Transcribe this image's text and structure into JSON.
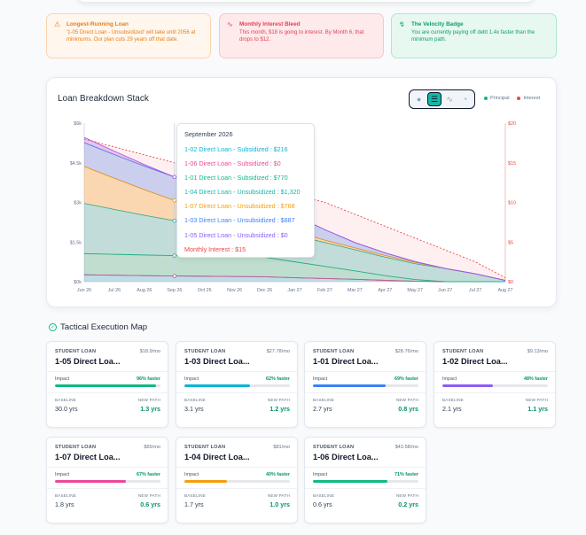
{
  "alerts": {
    "longest": {
      "title": "Longest-Running Loan",
      "body": "'1-05 Direct Loan - Unsubsidized' will take until 2056 at minimums. Our plan cuts 29 years off that date."
    },
    "interest": {
      "title": "Monthly Interest Bleed",
      "body": "This month, $18 is going to interest. By Month 6, that drops to $12."
    },
    "velocity": {
      "title": "The Velocity Badge",
      "body": "You are currently paying off debt 1.4x faster than the minimum path."
    }
  },
  "chart_card": {
    "title": "Loan Breakdown Stack",
    "toggles": [
      "circle-icon",
      "layers-icon",
      "wave-icon",
      "pie-icon"
    ],
    "legend": {
      "principal": "Principal",
      "interest": "Interest"
    }
  },
  "colors": {
    "principal": "#10b981",
    "interest": "#ef4444",
    "accent": "#14b8a6"
  },
  "chart_data": {
    "type": "area",
    "title": "Loan Breakdown Stack",
    "x": [
      "Jun 26",
      "Jul 26",
      "Aug 26",
      "Sep 26",
      "Oct 26",
      "Nov 26",
      "Dec 26",
      "Jan 27",
      "Feb 27",
      "Mar 27",
      "Apr 27",
      "May 27",
      "Jun 27",
      "Jul 27",
      "Aug 27"
    ],
    "y_left_ticks": [
      "$0k",
      "$1.5k",
      "$3k",
      "$4.5k",
      "$6k"
    ],
    "y_right_ticks": [
      "$0",
      "$5",
      "$10",
      "$15",
      "$20"
    ],
    "ylim": [
      0,
      6000
    ],
    "y2lim": [
      0,
      20
    ],
    "series": [
      {
        "name": "1-02 Direct Loan - Subsidized",
        "color": "#06b6d4",
        "values": [
          260,
          245,
          230,
          216,
          205,
          195,
          185,
          150,
          120,
          90,
          50,
          20,
          0,
          0,
          0
        ]
      },
      {
        "name": "1-06 Direct Loan - Subsidized",
        "color": "#ec4899",
        "values": [
          0,
          0,
          0,
          0,
          0,
          0,
          0,
          0,
          0,
          0,
          0,
          0,
          0,
          0,
          0
        ]
      },
      {
        "name": "1-01 Direct Loan - Subsidized",
        "color": "#10b981",
        "values": [
          800,
          790,
          780,
          770,
          760,
          750,
          740,
          600,
          460,
          320,
          180,
          60,
          0,
          0,
          0
        ]
      },
      {
        "name": "1-04 Direct Loan - Unsubsidized",
        "color": "#14b8a6",
        "values": [
          1900,
          1700,
          1500,
          1320,
          1250,
          1180,
          1100,
          1000,
          900,
          800,
          700,
          600,
          500,
          300,
          50
        ]
      },
      {
        "name": "1-07 Direct Loan - Unsubsidized",
        "color": "#f59e0b",
        "values": [
          1400,
          1180,
          970,
          768,
          600,
          420,
          260,
          150,
          90,
          70,
          60,
          50,
          0,
          0,
          0
        ]
      },
      {
        "name": "1-03 Direct Loan - Unsubsidized",
        "color": "#3b82f6",
        "values": [
          900,
          895,
          892,
          887,
          860,
          830,
          800,
          600,
          400,
          200,
          100,
          30,
          0,
          0,
          0
        ]
      },
      {
        "name": "1-05 Direct Loan - Unsubsidized",
        "color": "#a855f7",
        "values": [
          200,
          130,
          60,
          0,
          0,
          0,
          0,
          0,
          0,
          0,
          0,
          0,
          0,
          0,
          0
        ]
      }
    ],
    "interest": {
      "name": "Monthly Interest",
      "color": "#ef4444",
      "values": [
        18,
        17,
        16,
        15,
        14,
        13,
        12,
        11,
        10,
        8.5,
        7,
        5.5,
        4,
        2.5,
        0.5
      ]
    },
    "legend_position": "top-right",
    "grid": false
  },
  "tooltip": {
    "title": "September 2026",
    "rows": [
      {
        "text": "1-02 Direct Loan - Subsidized : $216",
        "color": "#06b6d4"
      },
      {
        "text": "1-06 Direct Loan - Subsidized : $0",
        "color": "#ec4899"
      },
      {
        "text": "1-01 Direct Loan - Subsidized : $770",
        "color": "#10b981"
      },
      {
        "text": "1-04 Direct Loan - Unsubsidized : $1,320",
        "color": "#14b8a6"
      },
      {
        "text": "1-07 Direct Loan - Unsubsidized : $768",
        "color": "#f59e0b"
      },
      {
        "text": "1-03 Direct Loan - Unsubsidized : $887",
        "color": "#3b82f6"
      },
      {
        "text": "1-05 Direct Loan - Unsubsidized : $0",
        "color": "#8b5cf6"
      },
      {
        "text": "Monthly Interest : $15",
        "color": "#ef4444"
      }
    ]
  },
  "execution": {
    "title": "Tactical Execution Map",
    "cards": [
      {
        "kind": "STUDENT LOAN",
        "payment": "$18.9/mo",
        "name": "1-05 Direct Loa...",
        "impact_label": "Impact",
        "impact": "96% faster",
        "impact_pct": 96,
        "bar_color": "#10b981",
        "baseline_label": "BASELINE",
        "newpath_label": "NEW PATH",
        "baseline": "30.0 yrs",
        "newpath": "1.3 yrs"
      },
      {
        "kind": "STUDENT LOAN",
        "payment": "$27.78/mo",
        "name": "1-03 Direct Loa...",
        "impact_label": "Impact",
        "impact": "62% faster",
        "impact_pct": 62,
        "bar_color": "#06b6d4",
        "baseline_label": "BASELINE",
        "newpath_label": "NEW PATH",
        "baseline": "3.1 yrs",
        "newpath": "1.2 yrs"
      },
      {
        "kind": "STUDENT LOAN",
        "payment": "$28.76/mo",
        "name": "1-01 Direct Loa...",
        "impact_label": "Impact",
        "impact": "69% faster",
        "impact_pct": 69,
        "bar_color": "#3b82f6",
        "baseline_label": "BASELINE",
        "newpath_label": "NEW PATH",
        "baseline": "2.7 yrs",
        "newpath": "0.8 yrs"
      },
      {
        "kind": "STUDENT LOAN",
        "payment": "$9.13/mo",
        "name": "1-02 Direct Loa...",
        "impact_label": "Impact",
        "impact": "48% faster",
        "impact_pct": 48,
        "bar_color": "#8b5cf6",
        "baseline_label": "BASELINE",
        "newpath_label": "NEW PATH",
        "baseline": "2.1 yrs",
        "newpath": "1.1 yrs"
      },
      {
        "kind": "STUDENT LOAN",
        "payment": "$65/mo",
        "name": "1-07 Direct Loa...",
        "impact_label": "Impact",
        "impact": "67% faster",
        "impact_pct": 67,
        "bar_color": "#ec4899",
        "baseline_label": "BASELINE",
        "newpath_label": "NEW PATH",
        "baseline": "1.8 yrs",
        "newpath": "0.6 yrs"
      },
      {
        "kind": "STUDENT LOAN",
        "payment": "$81/mo",
        "name": "1-04 Direct Loa...",
        "impact_label": "Impact",
        "impact": "40% faster",
        "impact_pct": 40,
        "bar_color": "#f59e0b",
        "baseline_label": "BASELINE",
        "newpath_label": "NEW PATH",
        "baseline": "1.7 yrs",
        "newpath": "1.0 yrs"
      },
      {
        "kind": "STUDENT LOAN",
        "payment": "$43.58/mo",
        "name": "1-06 Direct Loa...",
        "impact_label": "Impact",
        "impact": "71% faster",
        "impact_pct": 71,
        "bar_color": "#10b981",
        "baseline_label": "BASELINE",
        "newpath_label": "NEW PATH",
        "baseline": "0.6 yrs",
        "newpath": "0.2 yrs"
      }
    ]
  }
}
